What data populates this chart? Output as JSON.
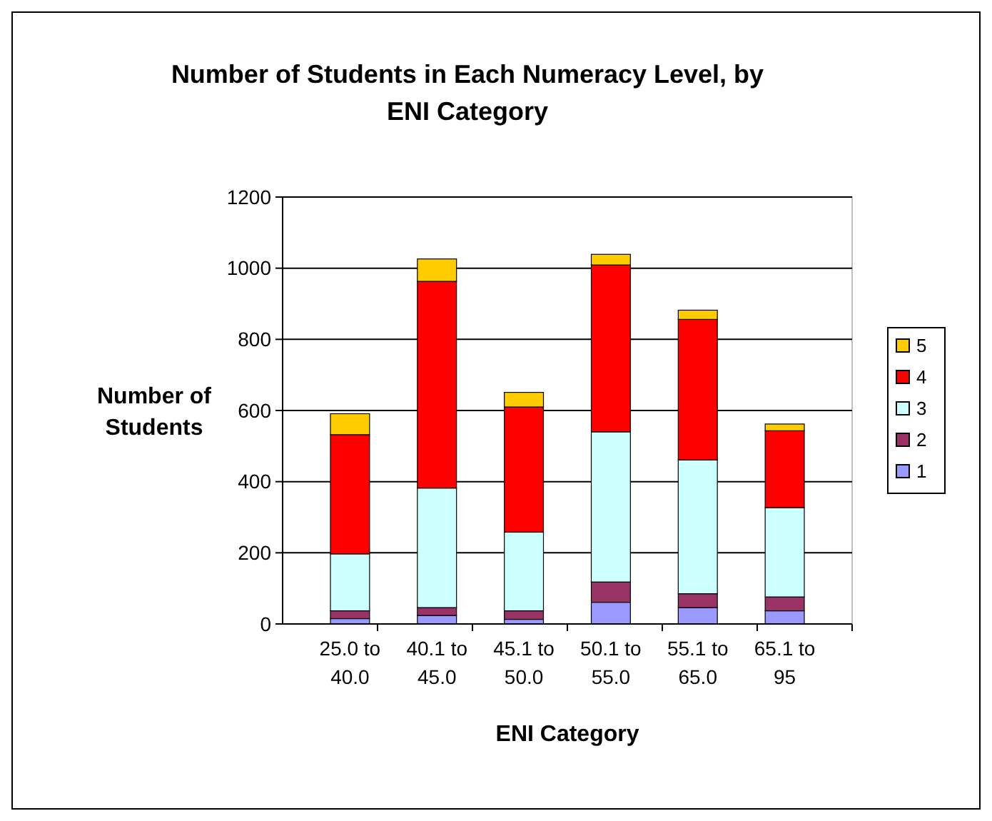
{
  "chart_data": {
    "type": "bar",
    "title": "Number of Students in Each Numeracy Level, by ENI Category",
    "xlabel": "ENI Category",
    "ylabel": "Number of Students",
    "categories": [
      "25.0 to 40.0",
      "40.1 to 45.0",
      "45.1 to 50.0",
      "50.1 to 55.0",
      "55.1 to 65.0",
      "65.1 to 95"
    ],
    "stacked": true,
    "series": [
      {
        "name": "1",
        "color": "#9999ff",
        "values": [
          15,
          24,
          13,
          61,
          46,
          37
        ]
      },
      {
        "name": "2",
        "color": "#993366",
        "values": [
          22,
          22,
          24,
          57,
          39,
          39
        ]
      },
      {
        "name": "3",
        "color": "#ccffff",
        "values": [
          160,
          336,
          221,
          422,
          376,
          251
        ]
      },
      {
        "name": "4",
        "color": "#ff0000",
        "values": [
          335,
          581,
          352,
          469,
          395,
          216
        ]
      },
      {
        "name": "5",
        "color": "#ffcc00",
        "values": [
          59,
          63,
          41,
          30,
          26,
          19
        ]
      }
    ],
    "ylim": [
      0,
      1200
    ],
    "yticks": [
      0,
      200,
      400,
      600,
      800,
      1000,
      1200
    ],
    "grid": "y",
    "legend": "right"
  }
}
